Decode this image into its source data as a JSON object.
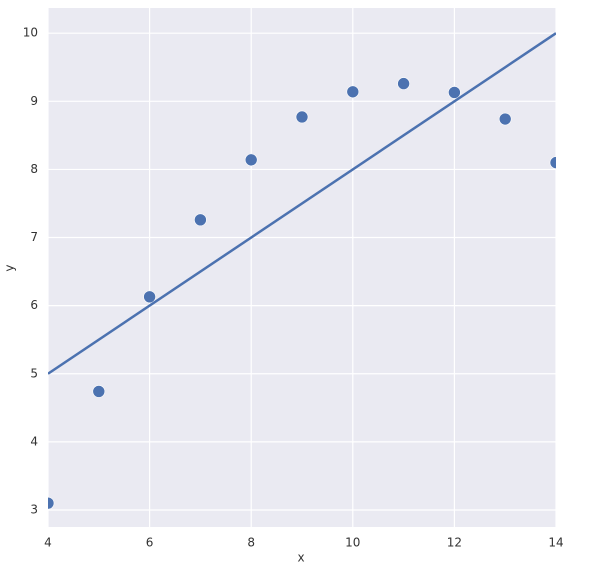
{
  "chart_data": {
    "type": "scatter",
    "x_label": "x",
    "y_label": "y",
    "x": [
      4,
      5,
      6,
      7,
      8,
      9,
      10,
      11,
      12,
      13,
      14
    ],
    "values": [
      3.1,
      4.74,
      6.13,
      7.26,
      8.14,
      8.77,
      9.14,
      9.26,
      9.13,
      8.74,
      8.1
    ],
    "color": "#4c72b0",
    "fit_line": {
      "x": [
        4,
        14
      ],
      "values": [
        5.0,
        10.0
      ]
    },
    "xlim": [
      4,
      14
    ],
    "xticks": [
      4,
      6,
      8,
      10,
      12,
      14
    ],
    "ylim": [
      2.75,
      10.37
    ],
    "yticks": [
      3,
      4,
      5,
      6,
      7,
      8,
      9,
      10
    ],
    "grid": true
  }
}
